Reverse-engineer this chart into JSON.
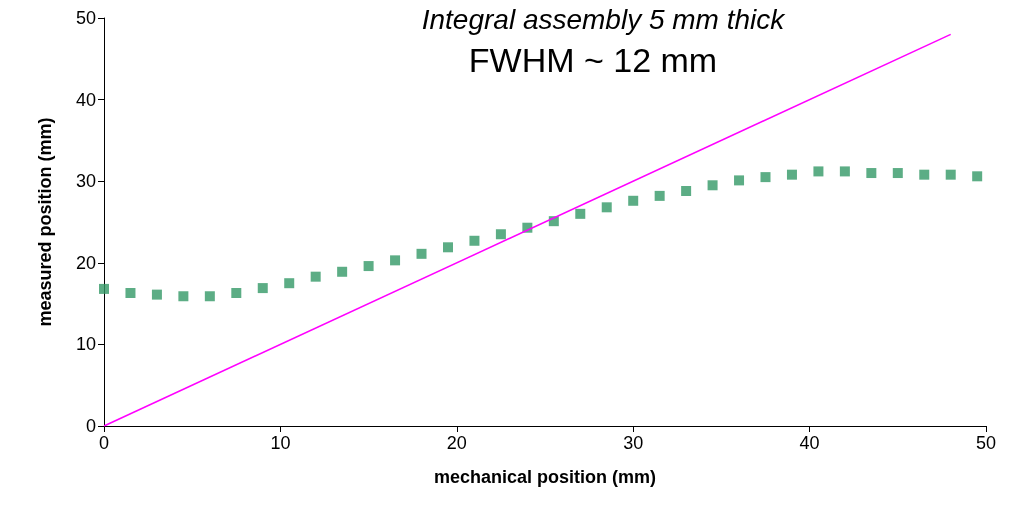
{
  "chart_data": {
    "type": "scatter",
    "title": "Integral assembly 5 mm thick",
    "subtitle": "FWHM ~ 12 mm",
    "xlabel": "mechanical position (mm)",
    "ylabel": "measured position (mm)",
    "xlim": [
      0,
      50
    ],
    "xticks": [
      0,
      10,
      20,
      30,
      40,
      50
    ],
    "ylim": [
      0,
      50
    ],
    "yticks": [
      0,
      10,
      20,
      30,
      40,
      50
    ],
    "grid": false,
    "marker": "square",
    "series": [
      {
        "color": "#339966",
        "x": [
          0,
          1.5,
          3,
          4.5,
          6,
          7.5,
          9,
          10.5,
          12,
          13.5,
          15,
          16.5,
          18,
          19.5,
          21,
          22.5,
          24,
          25.5,
          27,
          28.5,
          30,
          31.5,
          33,
          34.5,
          36,
          37.5,
          39,
          40.5,
          42,
          43.5,
          45,
          46.5,
          48,
          49.5
        ],
        "values": [
          16.8,
          16.3,
          16.1,
          15.9,
          15.9,
          16.3,
          16.9,
          17.5,
          18.3,
          18.9,
          19.6,
          20.3,
          21.1,
          21.9,
          22.7,
          23.5,
          24.3,
          25.1,
          26.0,
          26.8,
          27.6,
          28.2,
          28.8,
          29.5,
          30.1,
          30.5,
          30.8,
          31.2,
          31.2,
          31.0,
          31.0,
          30.8,
          30.8,
          30.6
        ]
      },
      {
        "type": "line",
        "color": "#ff00ff",
        "x": [
          0,
          48
        ],
        "values": [
          0,
          48
        ],
        "marker": "none",
        "line_style": "solid"
      }
    ]
  }
}
